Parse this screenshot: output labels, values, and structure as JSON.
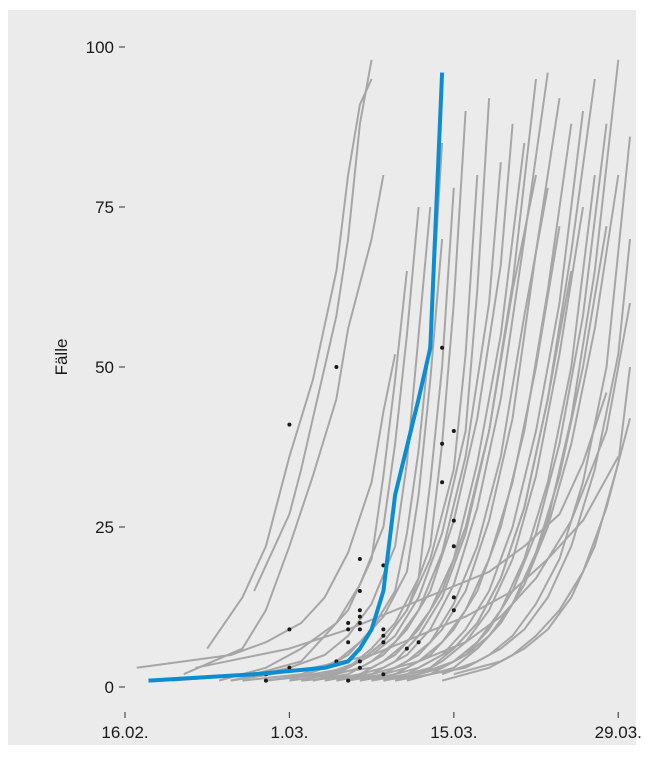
{
  "chart_data": {
    "type": "line",
    "title": "",
    "xlabel": "",
    "ylabel": "Fälle",
    "ylim": [
      0,
      100
    ],
    "xlim": [
      "2020-02-16",
      "2020-03-30"
    ],
    "y_ticks": [
      0,
      25,
      50,
      75,
      100
    ],
    "x_ticks": [
      {
        "date": "2020-02-16",
        "label": "16.02."
      },
      {
        "date": "2020-03-01",
        "label": "1.03."
      },
      {
        "date": "2020-03-15",
        "label": "15.03."
      },
      {
        "date": "2020-03-29",
        "label": "29.03."
      }
    ],
    "grid": false,
    "background": "#ebebeb",
    "colors": {
      "background_series": "#a6a6a6",
      "highlight": "#0b8ed1",
      "markers": "#1a1a1a"
    },
    "highlight_series": {
      "x": [
        "2020-02-18",
        "2020-02-27",
        "2020-03-04",
        "2020-03-06",
        "2020-03-07",
        "2020-03-08",
        "2020-03-09",
        "2020-03-10",
        "2020-03-12",
        "2020-03-13",
        "2020-03-14"
      ],
      "y": [
        1,
        2,
        3,
        4,
        6,
        9,
        15,
        30,
        45,
        53,
        96
      ]
    },
    "series": [
      {
        "x": [
          "2020-02-23",
          "2020-02-26",
          "2020-02-28",
          "2020-03-01",
          "2020-03-03",
          "2020-03-05",
          "2020-03-06",
          "2020-03-07",
          "2020-03-08"
        ],
        "y": [
          6,
          14,
          22,
          36,
          48,
          65,
          80,
          91,
          95
        ]
      },
      {
        "x": [
          "2020-02-27",
          "2020-03-01",
          "2020-03-02",
          "2020-03-03",
          "2020-03-04",
          "2020-03-05",
          "2020-03-06",
          "2020-03-07",
          "2020-03-08"
        ],
        "y": [
          15,
          27,
          34,
          42,
          50,
          58,
          70,
          88,
          98
        ]
      },
      {
        "x": [
          "2020-02-21",
          "2020-02-26",
          "2020-02-28",
          "2020-03-01",
          "2020-03-03",
          "2020-03-05",
          "2020-03-06",
          "2020-03-08",
          "2020-03-09"
        ],
        "y": [
          2,
          6,
          12,
          22,
          33,
          45,
          56,
          70,
          80
        ]
      },
      {
        "x": [
          "2020-02-17",
          "2020-02-25",
          "2020-02-28",
          "2020-03-02",
          "2020-03-04",
          "2020-03-06",
          "2020-03-08",
          "2020-03-09",
          "2020-03-10"
        ],
        "y": [
          3,
          5,
          7,
          10,
          14,
          21,
          32,
          43,
          52
        ]
      },
      {
        "x": [
          "2020-02-20",
          "2020-02-27",
          "2020-03-02",
          "2020-03-04",
          "2020-03-06",
          "2020-03-08",
          "2020-03-09",
          "2020-03-10",
          "2020-03-11"
        ],
        "y": [
          1,
          2,
          4,
          8,
          12,
          20,
          33,
          48,
          65
        ]
      },
      {
        "x": [
          "2020-02-25",
          "2020-03-01",
          "2020-03-04",
          "2020-03-06",
          "2020-03-08",
          "2020-03-10",
          "2020-03-11",
          "2020-03-12",
          "2020-03-13"
        ],
        "y": [
          1,
          3,
          5,
          8,
          13,
          22,
          35,
          55,
          75
        ]
      },
      {
        "x": [
          "2020-02-26",
          "2020-03-02",
          "2020-03-05",
          "2020-03-07",
          "2020-03-09",
          "2020-03-11",
          "2020-03-12",
          "2020-03-13",
          "2020-03-14"
        ],
        "y": [
          1,
          2,
          4,
          7,
          11,
          18,
          30,
          48,
          70
        ]
      },
      {
        "x": [
          "2020-02-28",
          "2020-03-03",
          "2020-03-06",
          "2020-03-08",
          "2020-03-10",
          "2020-03-12",
          "2020-03-13",
          "2020-03-14",
          "2020-03-15"
        ],
        "y": [
          1,
          2,
          3,
          6,
          10,
          17,
          32,
          50,
          78
        ]
      },
      {
        "x": [
          "2020-02-28",
          "2020-03-04",
          "2020-03-07",
          "2020-03-09",
          "2020-03-11",
          "2020-03-13",
          "2020-03-14",
          "2020-03-15",
          "2020-03-16"
        ],
        "y": [
          1,
          2,
          4,
          7,
          12,
          22,
          38,
          60,
          90
        ]
      },
      {
        "x": [
          "2020-03-01",
          "2020-03-05",
          "2020-03-07",
          "2020-03-09",
          "2020-03-11",
          "2020-03-13",
          "2020-03-15",
          "2020-03-16",
          "2020-03-17"
        ],
        "y": [
          1,
          2,
          4,
          7,
          12,
          20,
          34,
          52,
          80
        ]
      },
      {
        "x": [
          "2020-03-02",
          "2020-03-06",
          "2020-03-08",
          "2020-03-10",
          "2020-03-12",
          "2020-03-14",
          "2020-03-16",
          "2020-03-17",
          "2020-03-18"
        ],
        "y": [
          1,
          3,
          5,
          8,
          14,
          24,
          40,
          62,
          92
        ]
      },
      {
        "x": [
          "2020-03-03",
          "2020-03-06",
          "2020-03-08",
          "2020-03-10",
          "2020-03-12",
          "2020-03-14",
          "2020-03-16",
          "2020-03-18",
          "2020-03-19"
        ],
        "y": [
          1,
          2,
          4,
          7,
          12,
          21,
          36,
          60,
          82
        ]
      },
      {
        "x": [
          "2020-03-03",
          "2020-03-07",
          "2020-03-09",
          "2020-03-11",
          "2020-03-13",
          "2020-03-15",
          "2020-03-17",
          "2020-03-19",
          "2020-03-20"
        ],
        "y": [
          1,
          3,
          5,
          9,
          15,
          26,
          42,
          66,
          88
        ]
      },
      {
        "x": [
          "2020-03-04",
          "2020-03-07",
          "2020-03-09",
          "2020-03-11",
          "2020-03-13",
          "2020-03-15",
          "2020-03-17",
          "2020-03-19",
          "2020-03-21"
        ],
        "y": [
          1,
          2,
          4,
          7,
          12,
          20,
          35,
          55,
          85
        ]
      },
      {
        "x": [
          "2020-03-04",
          "2020-03-08",
          "2020-03-10",
          "2020-03-12",
          "2020-03-14",
          "2020-03-16",
          "2020-03-18",
          "2020-03-20",
          "2020-03-22"
        ],
        "y": [
          2,
          3,
          5,
          9,
          15,
          25,
          40,
          63,
          95
        ]
      },
      {
        "x": [
          "2020-03-05",
          "2020-03-08",
          "2020-03-10",
          "2020-03-12",
          "2020-03-14",
          "2020-03-16",
          "2020-03-18",
          "2020-03-20",
          "2020-03-22"
        ],
        "y": [
          1,
          2,
          4,
          8,
          14,
          24,
          40,
          62,
          80
        ]
      },
      {
        "x": [
          "2020-03-05",
          "2020-03-09",
          "2020-03-11",
          "2020-03-13",
          "2020-03-15",
          "2020-03-17",
          "2020-03-19",
          "2020-03-21",
          "2020-03-23"
        ],
        "y": [
          1,
          3,
          5,
          9,
          16,
          28,
          45,
          70,
          96
        ]
      },
      {
        "x": [
          "2020-03-06",
          "2020-03-09",
          "2020-03-11",
          "2020-03-13",
          "2020-03-15",
          "2020-03-17",
          "2020-03-19",
          "2020-03-21",
          "2020-03-23"
        ],
        "y": [
          1,
          2,
          4,
          7,
          13,
          22,
          36,
          58,
          78
        ]
      },
      {
        "x": [
          "2020-03-06",
          "2020-03-10",
          "2020-03-12",
          "2020-03-14",
          "2020-03-16",
          "2020-03-18",
          "2020-03-20",
          "2020-03-22",
          "2020-03-24"
        ],
        "y": [
          1,
          3,
          5,
          9,
          15,
          26,
          42,
          68,
          92
        ]
      },
      {
        "x": [
          "2020-03-07",
          "2020-03-10",
          "2020-03-12",
          "2020-03-14",
          "2020-03-16",
          "2020-03-18",
          "2020-03-20",
          "2020-03-22",
          "2020-03-24"
        ],
        "y": [
          1,
          2,
          4,
          7,
          12,
          20,
          32,
          50,
          72
        ]
      },
      {
        "x": [
          "2020-03-07",
          "2020-03-11",
          "2020-03-13",
          "2020-03-15",
          "2020-03-17",
          "2020-03-19",
          "2020-03-21",
          "2020-03-23",
          "2020-03-25"
        ],
        "y": [
          1,
          3,
          5,
          9,
          15,
          25,
          40,
          62,
          88
        ]
      },
      {
        "x": [
          "2020-03-08",
          "2020-03-11",
          "2020-03-13",
          "2020-03-15",
          "2020-03-17",
          "2020-03-19",
          "2020-03-21",
          "2020-03-23",
          "2020-03-25"
        ],
        "y": [
          1,
          2,
          4,
          6,
          10,
          17,
          28,
          45,
          65
        ]
      },
      {
        "x": [
          "2020-03-08",
          "2020-03-12",
          "2020-03-14",
          "2020-03-16",
          "2020-03-18",
          "2020-03-20",
          "2020-03-22",
          "2020-03-24",
          "2020-03-26"
        ],
        "y": [
          1,
          3,
          5,
          9,
          15,
          25,
          40,
          60,
          90
        ]
      },
      {
        "x": [
          "2020-03-09",
          "2020-03-12",
          "2020-03-14",
          "2020-03-16",
          "2020-03-18",
          "2020-03-20",
          "2020-03-22",
          "2020-03-24",
          "2020-03-26"
        ],
        "y": [
          1,
          2,
          4,
          7,
          12,
          20,
          33,
          52,
          75
        ]
      },
      {
        "x": [
          "2020-03-09",
          "2020-03-13",
          "2020-03-15",
          "2020-03-17",
          "2020-03-19",
          "2020-03-21",
          "2020-03-23",
          "2020-03-25",
          "2020-03-27"
        ],
        "y": [
          1,
          3,
          6,
          10,
          17,
          28,
          45,
          68,
          95
        ]
      },
      {
        "x": [
          "2020-03-10",
          "2020-03-13",
          "2020-03-15",
          "2020-03-17",
          "2020-03-19",
          "2020-03-21",
          "2020-03-23",
          "2020-03-25",
          "2020-03-27"
        ],
        "y": [
          1,
          2,
          4,
          7,
          12,
          20,
          32,
          50,
          80
        ]
      },
      {
        "x": [
          "2020-03-10",
          "2020-03-14",
          "2020-03-16",
          "2020-03-18",
          "2020-03-20",
          "2020-03-22",
          "2020-03-24",
          "2020-03-26",
          "2020-03-28"
        ],
        "y": [
          1,
          3,
          5,
          9,
          15,
          24,
          38,
          58,
          88
        ]
      },
      {
        "x": [
          "2020-03-11",
          "2020-03-14",
          "2020-03-16",
          "2020-03-18",
          "2020-03-20",
          "2020-03-22",
          "2020-03-24",
          "2020-03-26",
          "2020-03-28"
        ],
        "y": [
          2,
          3,
          5,
          8,
          13,
          21,
          33,
          50,
          72
        ]
      },
      {
        "x": [
          "2020-03-11",
          "2020-03-15",
          "2020-03-17",
          "2020-03-19",
          "2020-03-21",
          "2020-03-23",
          "2020-03-25",
          "2020-03-27",
          "2020-03-29"
        ],
        "y": [
          1,
          3,
          6,
          10,
          16,
          26,
          42,
          65,
          98
        ]
      },
      {
        "x": [
          "2020-03-12",
          "2020-03-15",
          "2020-03-17",
          "2020-03-19",
          "2020-03-21",
          "2020-03-23",
          "2020-03-25",
          "2020-03-27",
          "2020-03-29"
        ],
        "y": [
          2,
          4,
          6,
          10,
          16,
          25,
          38,
          56,
          80
        ]
      },
      {
        "x": [
          "2020-03-13",
          "2020-03-16",
          "2020-03-18",
          "2020-03-20",
          "2020-03-22",
          "2020-03-24",
          "2020-03-26",
          "2020-03-28",
          "2020-03-30"
        ],
        "y": [
          2,
          3,
          5,
          8,
          13,
          20,
          32,
          50,
          86
        ]
      },
      {
        "x": [
          "2020-03-14",
          "2020-03-17",
          "2020-03-19",
          "2020-03-21",
          "2020-03-23",
          "2020-03-25",
          "2020-03-27",
          "2020-03-29",
          "2020-03-30"
        ],
        "y": [
          2,
          4,
          6,
          9,
          14,
          22,
          34,
          52,
          70
        ]
      },
      {
        "x": [
          "2020-03-14",
          "2020-03-18",
          "2020-03-20",
          "2020-03-22",
          "2020-03-24",
          "2020-03-26",
          "2020-03-28",
          "2020-03-30"
        ],
        "y": [
          1,
          3,
          5,
          8,
          12,
          18,
          28,
          42
        ]
      },
      {
        "x": [
          "2020-03-15",
          "2020-03-19",
          "2020-03-21",
          "2020-03-23",
          "2020-03-25",
          "2020-03-27",
          "2020-03-29",
          "2020-03-30"
        ],
        "y": [
          2,
          4,
          6,
          9,
          14,
          22,
          35,
          50
        ]
      },
      {
        "x": [
          "2020-02-22",
          "2020-03-01",
          "2020-03-06",
          "2020-03-10",
          "2020-03-14",
          "2020-03-18",
          "2020-03-21",
          "2020-03-24",
          "2020-03-26",
          "2020-03-28"
        ],
        "y": [
          3,
          6,
          9,
          12,
          15,
          18,
          22,
          27,
          35,
          46
        ]
      },
      {
        "x": [
          "2020-02-25",
          "2020-03-03",
          "2020-03-08",
          "2020-03-12",
          "2020-03-16",
          "2020-03-20",
          "2020-03-23",
          "2020-03-26",
          "2020-03-29"
        ],
        "y": [
          1,
          3,
          5,
          8,
          11,
          15,
          20,
          26,
          36
        ]
      },
      {
        "x": [
          "2020-03-02",
          "2020-03-08",
          "2020-03-12",
          "2020-03-16",
          "2020-03-19",
          "2020-03-22",
          "2020-03-25",
          "2020-03-28",
          "2020-03-30"
        ],
        "y": [
          1,
          2,
          4,
          7,
          11,
          17,
          26,
          40,
          60
        ]
      },
      {
        "x": [
          "2020-02-24",
          "2020-02-28",
          "2020-03-02",
          "2020-03-05",
          "2020-03-07",
          "2020-03-09",
          "2020-03-10",
          "2020-03-11",
          "2020-03-12"
        ],
        "y": [
          1,
          3,
          6,
          10,
          16,
          25,
          38,
          55,
          75
        ]
      },
      {
        "x": [
          "2020-03-01",
          "2020-03-04",
          "2020-03-06",
          "2020-03-08",
          "2020-03-10",
          "2020-03-11",
          "2020-03-12",
          "2020-03-13",
          "2020-03-14"
        ],
        "y": [
          1,
          3,
          5,
          9,
          15,
          24,
          37,
          55,
          85
        ]
      }
    ],
    "markers": [
      {
        "x": "2020-03-01",
        "y": 41
      },
      {
        "x": "2020-03-05",
        "y": 50
      },
      {
        "x": "2020-03-14",
        "y": 53
      },
      {
        "x": "2020-03-15",
        "y": 40
      },
      {
        "x": "2020-03-14",
        "y": 38
      },
      {
        "x": "2020-03-14",
        "y": 32
      },
      {
        "x": "2020-03-15",
        "y": 26
      },
      {
        "x": "2020-03-15",
        "y": 22
      },
      {
        "x": "2020-03-07",
        "y": 20
      },
      {
        "x": "2020-03-09",
        "y": 19
      },
      {
        "x": "2020-03-07",
        "y": 15
      },
      {
        "x": "2020-03-15",
        "y": 14
      },
      {
        "x": "2020-03-15",
        "y": 12
      },
      {
        "x": "2020-03-07",
        "y": 12
      },
      {
        "x": "2020-03-07",
        "y": 11
      },
      {
        "x": "2020-03-06",
        "y": 10
      },
      {
        "x": "2020-03-07",
        "y": 10
      },
      {
        "x": "2020-03-01",
        "y": 9
      },
      {
        "x": "2020-03-06",
        "y": 9
      },
      {
        "x": "2020-03-07",
        "y": 9
      },
      {
        "x": "2020-03-09",
        "y": 9
      },
      {
        "x": "2020-03-09",
        "y": 8
      },
      {
        "x": "2020-03-06",
        "y": 7
      },
      {
        "x": "2020-03-09",
        "y": 7
      },
      {
        "x": "2020-03-12",
        "y": 7
      },
      {
        "x": "2020-03-11",
        "y": 6
      },
      {
        "x": "2020-03-05",
        "y": 4
      },
      {
        "x": "2020-03-07",
        "y": 4
      },
      {
        "x": "2020-03-01",
        "y": 3
      },
      {
        "x": "2020-03-07",
        "y": 3
      },
      {
        "x": "2020-02-27",
        "y": 2
      },
      {
        "x": "2020-02-28",
        "y": 2
      },
      {
        "x": "2020-03-09",
        "y": 2
      },
      {
        "x": "2020-02-28",
        "y": 1
      },
      {
        "x": "2020-03-06",
        "y": 1
      }
    ]
  }
}
